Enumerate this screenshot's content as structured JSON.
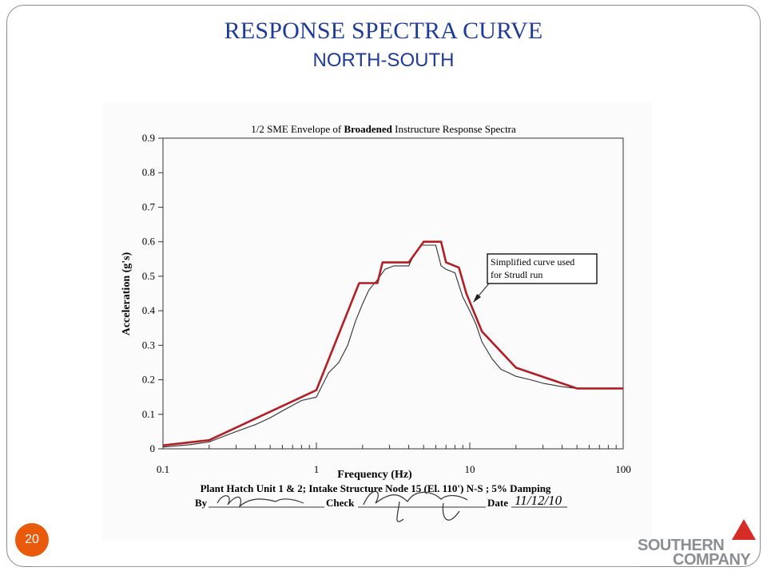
{
  "slide": {
    "title": "RESPONSE SPECTRA CURVE",
    "subtitle": "NORTH-SOUTH",
    "page_number": "20",
    "logo_line1": "SOUTHERN",
    "logo_line2": "COMPANY",
    "colors": {
      "title": "#1f3a99",
      "badge": "#ea5a0c",
      "logo_gray": "#8b8e93",
      "logo_red": "#d62b27"
    }
  },
  "chart_data": {
    "type": "line",
    "title_prefix": "1/2 SME Envelope of ",
    "title_bold": "Broadened",
    "title_suffix": " Instructure Response Spectra",
    "xlabel": "Frequency (Hz)",
    "ylabel": "Acceleration (g's)",
    "xscale": "log",
    "xlim": [
      0.1,
      100
    ],
    "ylim": [
      0,
      0.9
    ],
    "x_ticks": [
      "0.1",
      "1",
      "10",
      "100"
    ],
    "y_ticks": [
      "0",
      "0.1",
      "0.2",
      "0.3",
      "0.4",
      "0.5",
      "0.6",
      "0.7",
      "0.8",
      "0.9"
    ],
    "grid": false,
    "annotation": {
      "line1": "Simplified curve used",
      "line2": "for Strudl run"
    },
    "caption": "Plant Hatch Unit 1 & 2; Intake Structure Node 15 (El. 110') N-S ; 5% Damping",
    "by_label": "By",
    "check_label": "Check",
    "date_label": "Date",
    "date_value": "11/12/10",
    "series": [
      {
        "color": "#b21e24",
        "x": [
          0.1,
          0.2,
          1.0,
          1.9,
          2.5,
          2.7,
          3.0,
          4.0,
          5.0,
          6.5,
          7.0,
          8.5,
          9.5,
          12,
          20,
          50,
          100
        ],
        "y": [
          0.01,
          0.025,
          0.17,
          0.48,
          0.48,
          0.54,
          0.54,
          0.54,
          0.6,
          0.6,
          0.54,
          0.525,
          0.45,
          0.34,
          0.235,
          0.175,
          0.175
        ]
      },
      {
        "color": "#303030",
        "x": [
          0.1,
          0.15,
          0.2,
          0.3,
          0.4,
          0.5,
          0.6,
          0.8,
          1.0,
          1.2,
          1.4,
          1.6,
          1.8,
          2.0,
          2.2,
          2.5,
          2.8,
          3.2,
          4.0,
          4.3,
          4.8,
          5.2,
          6.0,
          6.5,
          7.0,
          8.0,
          9.0,
          10,
          11,
          12,
          14,
          16,
          18,
          20,
          25,
          30,
          40,
          50,
          60,
          100
        ],
        "y": [
          0.005,
          0.012,
          0.02,
          0.05,
          0.07,
          0.09,
          0.11,
          0.14,
          0.15,
          0.22,
          0.25,
          0.3,
          0.37,
          0.42,
          0.46,
          0.49,
          0.52,
          0.53,
          0.53,
          0.56,
          0.59,
          0.59,
          0.59,
          0.53,
          0.52,
          0.51,
          0.44,
          0.4,
          0.36,
          0.31,
          0.26,
          0.23,
          0.22,
          0.21,
          0.2,
          0.19,
          0.18,
          0.175,
          0.175,
          0.175
        ]
      }
    ]
  }
}
